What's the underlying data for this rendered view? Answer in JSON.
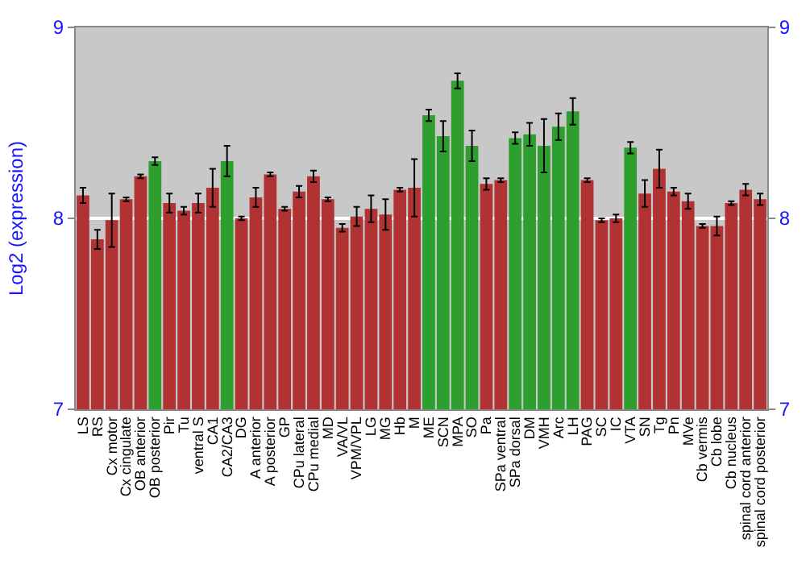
{
  "chart_data": {
    "type": "bar",
    "ylabel": "Log2 (expression)",
    "categories": [
      "LS",
      "RS",
      "Cx motor",
      "Cx cingulate",
      "OB anterior",
      "OB posterior",
      "Pir",
      "Tu",
      "ventral S",
      "CA1",
      "CA2/CA3",
      "DG",
      "A anterior",
      "A posterior",
      "GP",
      "CPu lateral",
      "CPu medial",
      "MD",
      "VA/VL",
      "VPM/VPL",
      "LG",
      "MG",
      "Hb",
      "M",
      "ME",
      "SCN",
      "MPA",
      "SO",
      "Pa",
      "SPa ventral",
      "SPa dorsal",
      "DM",
      "VMH",
      "Arc",
      "LH",
      "PAG",
      "SC",
      "IC",
      "VTA",
      "SN",
      "Tg",
      "Pn",
      "MVe",
      "Cb vermis",
      "Cb lobe",
      "Cb nucleus",
      "spinal cord anterior",
      "spinal cord posterior"
    ],
    "values": [
      8.12,
      7.89,
      7.99,
      8.1,
      8.22,
      8.3,
      8.08,
      8.04,
      8.08,
      8.16,
      8.3,
      8.0,
      8.11,
      8.23,
      8.05,
      8.14,
      8.22,
      8.1,
      7.95,
      8.01,
      8.05,
      8.02,
      8.15,
      8.16,
      8.54,
      8.43,
      8.72,
      8.38,
      8.18,
      8.2,
      8.42,
      8.44,
      8.38,
      8.48,
      8.56,
      8.2,
      7.99,
      8.0,
      8.37,
      8.13,
      8.26,
      8.14,
      8.09,
      7.96,
      7.96,
      8.08,
      8.15,
      8.1
    ],
    "errors": [
      0.04,
      0.05,
      0.14,
      0.01,
      0.01,
      0.02,
      0.05,
      0.02,
      0.05,
      0.1,
      0.08,
      0.01,
      0.05,
      0.01,
      0.01,
      0.03,
      0.03,
      0.01,
      0.02,
      0.05,
      0.07,
      0.08,
      0.01,
      0.15,
      0.03,
      0.08,
      0.04,
      0.08,
      0.03,
      0.01,
      0.03,
      0.06,
      0.14,
      0.07,
      0.07,
      0.01,
      0.01,
      0.02,
      0.03,
      0.07,
      0.1,
      0.02,
      0.04,
      0.01,
      0.05,
      0.01,
      0.03,
      0.03
    ],
    "colors": [
      "#b03232",
      "#b03232",
      "#b03232",
      "#b03232",
      "#b03232",
      "#2e9e2e",
      "#b03232",
      "#b03232",
      "#b03232",
      "#b03232",
      "#2e9e2e",
      "#b03232",
      "#b03232",
      "#b03232",
      "#b03232",
      "#b03232",
      "#b03232",
      "#b03232",
      "#b03232",
      "#b03232",
      "#b03232",
      "#b03232",
      "#b03232",
      "#b03232",
      "#2e9e2e",
      "#2e9e2e",
      "#2e9e2e",
      "#2e9e2e",
      "#b03232",
      "#b03232",
      "#2e9e2e",
      "#2e9e2e",
      "#2e9e2e",
      "#2e9e2e",
      "#2e9e2e",
      "#b03232",
      "#b03232",
      "#b03232",
      "#2e9e2e",
      "#b03232",
      "#b03232",
      "#b03232",
      "#b03232",
      "#b03232",
      "#b03232",
      "#b03232",
      "#b03232",
      "#b03232"
    ],
    "ylim": [
      7,
      9
    ],
    "yticks": [
      7,
      8,
      9
    ],
    "y2lim": [
      7,
      9
    ],
    "y2ticks": [
      7,
      8,
      9
    ],
    "grid": "y"
  }
}
